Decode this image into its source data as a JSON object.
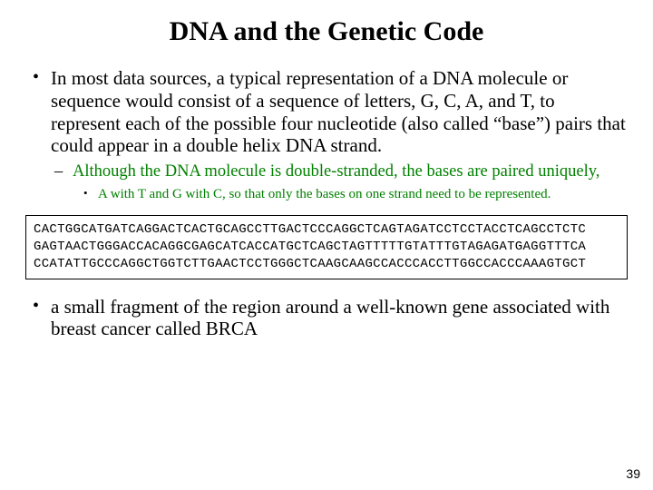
{
  "title": "DNA and the Genetic Code",
  "bullets": {
    "b1": "In most data sources, a typical representation of a DNA molecule or sequence would consist of a sequence of letters, G, C, A, and T, to represent each of the possible four nucleotide (also called “base”) pairs that could appear in a double helix DNA strand.",
    "b1_sub": "Although the DNA molecule is double-stranded, the bases are paired uniquely,",
    "b1_subsub": "A with T and G with C, so that only the bases on one strand need to be represented.",
    "b2": "a small fragment of the region around a well-known gene associated with breast cancer called BRCA"
  },
  "sequence": {
    "line1": "CACTGGCATGATCAGGACTCACTGCAGCCTTGACTCCCAGGCTCAGTAGATCCTCCTACCTCAGCCTCTC",
    "line2": "GAGTAACTGGGACCACAGGCGAGCATCACCATGCTCAGCTAGTTTTTGTATTTGTAGAGATGAGGTTTCA",
    "line3": "CCATATTGCCCAGGCTGGTCTTGAACTCCTGGGCTCAAGCAAGCCACCCACCTTGGCCACCCAAAGTGCT"
  },
  "pageNumber": "39",
  "colors": {
    "subbullet": "#008000",
    "text": "#000000",
    "background": "#ffffff"
  }
}
